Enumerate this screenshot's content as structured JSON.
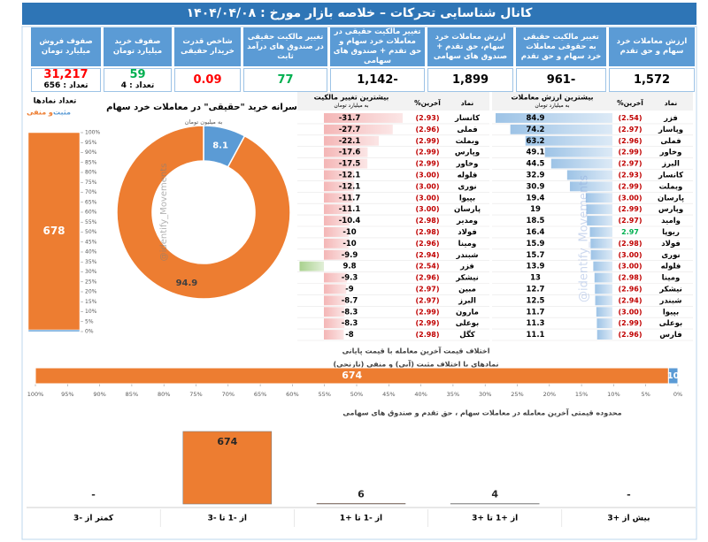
{
  "header": {
    "title": "کانال شناسایی تحرکات  –  خلاصه بازار مورخ : ۱۴۰۴/۰۴/۰۸"
  },
  "watermark": "@identify_Movements",
  "cards": [
    {
      "label": "ارزش معاملات خرد سهام و حق تقدم",
      "value": "1,572",
      "color": "#000000"
    },
    {
      "label": "تغییر مالکیت حقیقی به حقوقی معاملات خرد سهام و حق تقدم",
      "value": "-961",
      "color": "#000000"
    },
    {
      "label": "ارزش معاملات خرد سهام، حق تقدم + صندوق های سهامی",
      "value": "1,899",
      "color": "#000000"
    },
    {
      "label": "تغییر مالکیت حقیقی در معاملات خرد سهام و حق تقدم + صندوق های سهامی",
      "value": "-1,142",
      "color": "#000000"
    },
    {
      "label": "تغییر مالکیت حقیقی در صندوق های درآمد ثابت",
      "value": "77",
      "color": "#00b050"
    },
    {
      "label": "شاخص قدرت خریدار حقیقی",
      "value": "0.09",
      "color": "#ff0000"
    },
    {
      "label": "صفوف خرید میلیارد تومان",
      "value": "59",
      "color": "#00b050",
      "count": "تعداد : 4"
    },
    {
      "label": "صفوف فروش میلیارد تومان",
      "value": "31,217",
      "color": "#ff0000",
      "count": "تعداد : 656"
    }
  ],
  "top_value_table": {
    "title": "بیشترین ارزش معاملات",
    "unit": "به میلیارد تومان",
    "columns": [
      "نماد",
      "%آخرین"
    ],
    "bar_color": "#9dc3e6",
    "negative_color": "#c00000",
    "positive_color": "#00b050",
    "rows": [
      [
        "فزر",
        {
          "value": -2.54,
          "label": "(2.54)"
        },
        84.9
      ],
      [
        "وپاسار",
        {
          "value": -2.97,
          "label": "(2.97)"
        },
        74.2
      ],
      [
        "فملی",
        {
          "value": -2.96,
          "label": "(2.96)"
        },
        63.2
      ],
      [
        "وخاور",
        {
          "value": -2.99,
          "label": "(2.99)"
        },
        49.1
      ],
      [
        "البرز",
        {
          "value": -2.97,
          "label": "(2.97)"
        },
        44.5
      ],
      [
        "کانسار",
        {
          "value": -2.93,
          "label": "(2.93)"
        },
        32.9
      ],
      [
        "وبملت",
        {
          "value": -2.99,
          "label": "(2.99)"
        },
        30.9
      ],
      [
        "پارسان",
        {
          "value": -3.0,
          "label": "(3.00)"
        },
        19.4
      ],
      [
        "وپارس",
        {
          "value": -2.99,
          "label": "(2.99)"
        },
        19.0
      ],
      [
        "وامید",
        {
          "value": -2.97,
          "label": "(2.97)"
        },
        18.5
      ],
      [
        "ریوپا",
        2.97,
        16.4
      ],
      [
        "فولاد",
        {
          "value": -2.98,
          "label": "(2.98)"
        },
        15.9
      ],
      [
        "نوری",
        {
          "value": -3.0,
          "label": "(3.00)"
        },
        15.7
      ],
      [
        "فلوله",
        {
          "value": -3.0,
          "label": "(3.00)"
        },
        13.9
      ],
      [
        "ومینا",
        {
          "value": -2.98,
          "label": "(2.98)"
        },
        13.0
      ],
      [
        "نیشکر",
        {
          "value": -2.96,
          "label": "(2.96)"
        },
        12.7
      ],
      [
        "شبندر",
        {
          "value": -2.94,
          "label": "(2.94)"
        },
        12.5
      ],
      [
        "بپیوا",
        {
          "value": -3.0,
          "label": "(3.00)"
        },
        11.7
      ],
      [
        "بوعلی",
        {
          "value": -2.99,
          "label": "(2.99)"
        },
        11.3
      ],
      [
        "فارس",
        {
          "value": -2.96,
          "label": "(2.96)"
        },
        11.1
      ]
    ]
  },
  "top_change_table": {
    "title": "بیشترین تغییر مالکیت",
    "unit": "به میلیارد تومان",
    "columns": [
      "نماد",
      "%آخرین"
    ],
    "bar_color": "#f4b6b6",
    "bar_positive_color": "#a9d18e",
    "negative_color": "#c00000",
    "positive_color": "#00b050",
    "rows": [
      [
        "کانسار",
        {
          "value": -2.93,
          "label": "(2.93)"
        },
        -31.7
      ],
      [
        "فملی",
        {
          "value": -2.96,
          "label": "(2.96)"
        },
        -27.7
      ],
      [
        "وبملت",
        {
          "value": -2.99,
          "label": "(2.99)"
        },
        -22.1
      ],
      [
        "وپارس",
        {
          "value": -2.99,
          "label": "(2.99)"
        },
        -17.6
      ],
      [
        "وخاور",
        {
          "value": -2.99,
          "label": "(2.99)"
        },
        -17.5
      ],
      [
        "فلوله",
        {
          "value": -3.0,
          "label": "(3.00)"
        },
        -12.1
      ],
      [
        "نوری",
        {
          "value": -3.0,
          "label": "(3.00)"
        },
        -12.1
      ],
      [
        "بپیوا",
        {
          "value": -3.0,
          "label": "(3.00)"
        },
        -11.7
      ],
      [
        "پارسان",
        {
          "value": -3.0,
          "label": "(3.00)"
        },
        -11.1
      ],
      [
        "ومدیر",
        {
          "value": -2.98,
          "label": "(2.98)"
        },
        -10.4
      ],
      [
        "فولاد",
        {
          "value": -2.98,
          "label": "(2.98)"
        },
        -10.0
      ],
      [
        "ومینا",
        {
          "value": -2.96,
          "label": "(2.96)"
        },
        -10.0
      ],
      [
        "شبندر",
        {
          "value": -2.94,
          "label": "(2.94)"
        },
        -9.9
      ],
      [
        "فزر",
        {
          "value": -2.54,
          "label": "(2.54)"
        },
        9.8
      ],
      [
        "نیشکر",
        {
          "value": -2.96,
          "label": "(2.96)"
        },
        -9.3
      ],
      [
        "مبین",
        {
          "value": -2.97,
          "label": "(2.97)"
        },
        -9.0
      ],
      [
        "البرز",
        {
          "value": -2.97,
          "label": "(2.97)"
        },
        -8.7
      ],
      [
        "مارون",
        {
          "value": -2.99,
          "label": "(2.99)"
        },
        -8.3
      ],
      [
        "بوعلی",
        {
          "value": -2.99,
          "label": "(2.99)"
        },
        -8.3
      ],
      [
        "کگل",
        {
          "value": -2.98,
          "label": "(2.98)"
        },
        -8.0
      ]
    ]
  },
  "chart_data": [
    {
      "type": "stacked_percent",
      "title": "تعداد نمادها",
      "series": [
        {
          "name": "مثبت",
          "color": "#5b9bd5",
          "values": [
            6
          ]
        },
        {
          "name": "و منفی",
          "color": "#ed7d31",
          "values": [
            678
          ]
        }
      ],
      "ylim": [
        0,
        100
      ],
      "yticks": [
        {
          "value": 0,
          "label": "0%"
        },
        {
          "value": 5,
          "label": "5%"
        },
        {
          "value": 10,
          "label": "10%"
        },
        {
          "value": 15,
          "label": "15%"
        },
        {
          "value": 20,
          "label": "20%"
        },
        {
          "value": 25,
          "label": "25%"
        },
        {
          "value": 30,
          "label": "30%"
        },
        {
          "value": 35,
          "label": "35%"
        },
        {
          "value": 40,
          "label": "40%"
        },
        {
          "value": 45,
          "label": "45%"
        },
        {
          "value": 50,
          "label": "50%"
        },
        {
          "value": 55,
          "label": "55%"
        },
        {
          "value": 60,
          "label": "60%"
        },
        {
          "value": 65,
          "label": "65%"
        },
        {
          "value": 70,
          "label": "70%"
        },
        {
          "value": 75,
          "label": "75%"
        },
        {
          "value": 80,
          "label": "80%"
        },
        {
          "value": 85,
          "label": "85%"
        },
        {
          "value": 90,
          "label": "90%"
        },
        {
          "value": 95,
          "label": "95%"
        },
        {
          "value": 100,
          "label": "100%"
        }
      ]
    },
    {
      "type": "donut",
      "title": "سرانه خرید \"حقیقی\" در معاملات خرد سهام",
      "subtitle": "به میلیون تومان",
      "values": [
        8.1,
        94.9
      ],
      "colors": [
        "#5b9bd5",
        "#ed7d31"
      ]
    },
    {
      "type": "hbar_percent",
      "title": "اختلاف قیمت آخرین معامله با قیمت پایانی",
      "subtitle": "نمادهای با اختلاف مثبت (آبی) و منفی (نارنجی)",
      "values": [
        674,
        10
      ],
      "colors": [
        "#ed7d31",
        "#5b9bd5"
      ],
      "xlim": [
        100,
        0
      ],
      "xticks": [
        {
          "value": 100,
          "label": "100%"
        },
        {
          "value": 95,
          "label": "95%"
        },
        {
          "value": 90,
          "label": "90%"
        },
        {
          "value": 85,
          "label": "85%"
        },
        {
          "value": 80,
          "label": "80%"
        },
        {
          "value": 75,
          "label": "75%"
        },
        {
          "value": 70,
          "label": "70%"
        },
        {
          "value": 65,
          "label": "65%"
        },
        {
          "value": 60,
          "label": "60%"
        },
        {
          "value": 55,
          "label": "55%"
        },
        {
          "value": 50,
          "label": "50%"
        },
        {
          "value": 45,
          "label": "45%"
        },
        {
          "value": 40,
          "label": "40%"
        },
        {
          "value": 35,
          "label": "35%"
        },
        {
          "value": 30,
          "label": "30%"
        },
        {
          "value": 25,
          "label": "25%"
        },
        {
          "value": 20,
          "label": "20%"
        },
        {
          "value": 15,
          "label": "15%"
        },
        {
          "value": 10,
          "label": "10%"
        },
        {
          "value": 5,
          "label": "5%"
        },
        {
          "value": 0,
          "label": "0%"
        }
      ]
    },
    {
      "type": "bar",
      "title": "محدوده قیمتی آخرین معامله در  معاملات سهام ، حق تقدم و صندوق های سهامی",
      "categories": [
        "کمتر از -3",
        "از -1 تا -3",
        "از -1 تا +1",
        "از +1 تا +3",
        "بیش از +3"
      ],
      "values": [
        null,
        674,
        6,
        4,
        null
      ],
      "value_labels": [
        "-",
        "674",
        "6",
        "4",
        "-"
      ],
      "color": "#ed7d31"
    }
  ]
}
